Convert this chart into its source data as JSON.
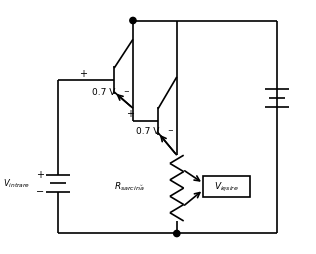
{
  "bg_color": "#ffffff",
  "line_color": "#000000",
  "line_width": 1.2,
  "fig_width": 3.16,
  "fig_height": 2.54,
  "dpi": 100
}
